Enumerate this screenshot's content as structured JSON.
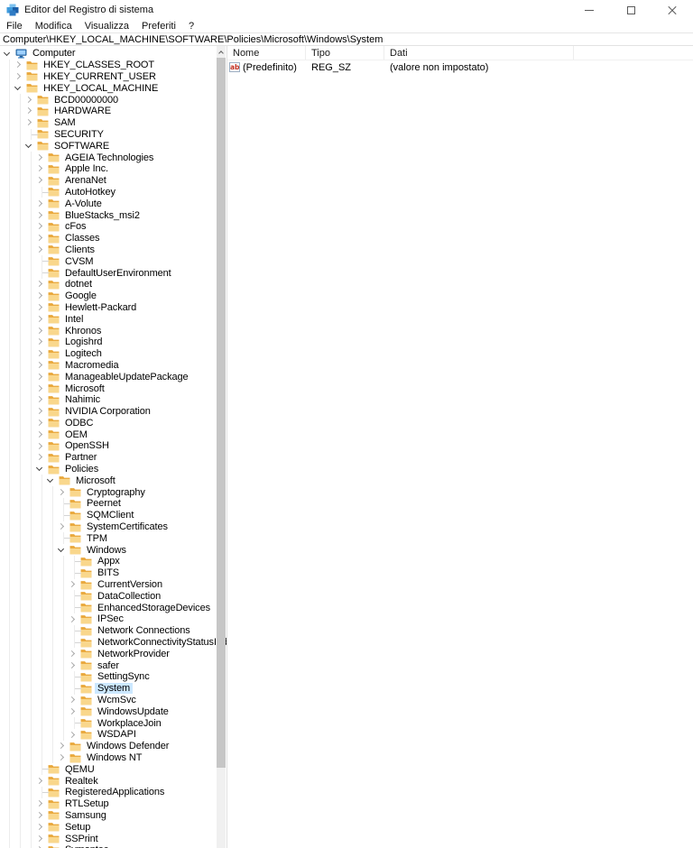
{
  "window": {
    "title": "Editor del Registro di sistema",
    "controls": [
      "minimize",
      "maximize",
      "close"
    ]
  },
  "menu": {
    "items": [
      "File",
      "Modifica",
      "Visualizza",
      "Preferiti",
      "?"
    ]
  },
  "address": {
    "value": "Computer\\HKEY_LOCAL_MACHINE\\SOFTWARE\\Policies\\Microsoft\\Windows\\System"
  },
  "colors": {
    "selection": "#cce8ff",
    "folder_front": "#f9d78c",
    "folder_back": "#e9a83b",
    "accent_blue": "#1f76d3",
    "value_icon_red": "#c22f21"
  },
  "tree": {
    "items": [
      {
        "label": "Computer",
        "level": 0,
        "chevron": "expanded",
        "icon": "computer-icon"
      },
      {
        "label": "HKEY_CLASSES_ROOT",
        "level": 1,
        "chevron": "collapsed"
      },
      {
        "label": "HKEY_CURRENT_USER",
        "level": 1,
        "chevron": "collapsed"
      },
      {
        "label": "HKEY_LOCAL_MACHINE",
        "level": 1,
        "chevron": "expanded"
      },
      {
        "label": "BCD00000000",
        "level": 2,
        "chevron": "collapsed"
      },
      {
        "label": "HARDWARE",
        "level": 2,
        "chevron": "collapsed"
      },
      {
        "label": "SAM",
        "level": 2,
        "chevron": "collapsed"
      },
      {
        "label": "SECURITY",
        "level": 2,
        "chevron": "none"
      },
      {
        "label": "SOFTWARE",
        "level": 2,
        "chevron": "expanded"
      },
      {
        "label": "AGEIA Technologies",
        "level": 3,
        "chevron": "collapsed"
      },
      {
        "label": "Apple Inc.",
        "level": 3,
        "chevron": "collapsed"
      },
      {
        "label": "ArenaNet",
        "level": 3,
        "chevron": "collapsed"
      },
      {
        "label": "AutoHotkey",
        "level": 3,
        "chevron": "none"
      },
      {
        "label": "A-Volute",
        "level": 3,
        "chevron": "collapsed"
      },
      {
        "label": "BlueStacks_msi2",
        "level": 3,
        "chevron": "collapsed"
      },
      {
        "label": "cFos",
        "level": 3,
        "chevron": "collapsed"
      },
      {
        "label": "Classes",
        "level": 3,
        "chevron": "collapsed"
      },
      {
        "label": "Clients",
        "level": 3,
        "chevron": "collapsed"
      },
      {
        "label": "CVSM",
        "level": 3,
        "chevron": "none"
      },
      {
        "label": "DefaultUserEnvironment",
        "level": 3,
        "chevron": "none"
      },
      {
        "label": "dotnet",
        "level": 3,
        "chevron": "collapsed"
      },
      {
        "label": "Google",
        "level": 3,
        "chevron": "collapsed"
      },
      {
        "label": "Hewlett-Packard",
        "level": 3,
        "chevron": "collapsed"
      },
      {
        "label": "Intel",
        "level": 3,
        "chevron": "collapsed"
      },
      {
        "label": "Khronos",
        "level": 3,
        "chevron": "collapsed"
      },
      {
        "label": "Logishrd",
        "level": 3,
        "chevron": "collapsed"
      },
      {
        "label": "Logitech",
        "level": 3,
        "chevron": "collapsed"
      },
      {
        "label": "Macromedia",
        "level": 3,
        "chevron": "collapsed"
      },
      {
        "label": "ManageableUpdatePackage",
        "level": 3,
        "chevron": "collapsed"
      },
      {
        "label": "Microsoft",
        "level": 3,
        "chevron": "collapsed"
      },
      {
        "label": "Nahimic",
        "level": 3,
        "chevron": "collapsed"
      },
      {
        "label": "NVIDIA Corporation",
        "level": 3,
        "chevron": "collapsed"
      },
      {
        "label": "ODBC",
        "level": 3,
        "chevron": "collapsed"
      },
      {
        "label": "OEM",
        "level": 3,
        "chevron": "collapsed"
      },
      {
        "label": "OpenSSH",
        "level": 3,
        "chevron": "collapsed"
      },
      {
        "label": "Partner",
        "level": 3,
        "chevron": "collapsed"
      },
      {
        "label": "Policies",
        "level": 3,
        "chevron": "expanded"
      },
      {
        "label": "Microsoft",
        "level": 4,
        "chevron": "expanded"
      },
      {
        "label": "Cryptography",
        "level": 5,
        "chevron": "collapsed"
      },
      {
        "label": "Peernet",
        "level": 5,
        "chevron": "none"
      },
      {
        "label": "SQMClient",
        "level": 5,
        "chevron": "none"
      },
      {
        "label": "SystemCertificates",
        "level": 5,
        "chevron": "collapsed"
      },
      {
        "label": "TPM",
        "level": 5,
        "chevron": "none"
      },
      {
        "label": "Windows",
        "level": 5,
        "chevron": "expanded"
      },
      {
        "label": "Appx",
        "level": 6,
        "chevron": "none"
      },
      {
        "label": "BITS",
        "level": 6,
        "chevron": "none"
      },
      {
        "label": "CurrentVersion",
        "level": 6,
        "chevron": "collapsed"
      },
      {
        "label": "DataCollection",
        "level": 6,
        "chevron": "none"
      },
      {
        "label": "EnhancedStorageDevices",
        "level": 6,
        "chevron": "none"
      },
      {
        "label": "IPSec",
        "level": 6,
        "chevron": "collapsed"
      },
      {
        "label": "Network Connections",
        "level": 6,
        "chevron": "none"
      },
      {
        "label": "NetworkConnectivityStatusIndicator",
        "level": 6,
        "chevron": "none"
      },
      {
        "label": "NetworkProvider",
        "level": 6,
        "chevron": "collapsed"
      },
      {
        "label": "safer",
        "level": 6,
        "chevron": "collapsed"
      },
      {
        "label": "SettingSync",
        "level": 6,
        "chevron": "none"
      },
      {
        "label": "System",
        "level": 6,
        "chevron": "none",
        "selected": true
      },
      {
        "label": "WcmSvc",
        "level": 6,
        "chevron": "collapsed"
      },
      {
        "label": "WindowsUpdate",
        "level": 6,
        "chevron": "collapsed"
      },
      {
        "label": "WorkplaceJoin",
        "level": 6,
        "chevron": "none"
      },
      {
        "label": "WSDAPI",
        "level": 6,
        "chevron": "collapsed"
      },
      {
        "label": "Windows Defender",
        "level": 5,
        "chevron": "collapsed"
      },
      {
        "label": "Windows NT",
        "level": 5,
        "chevron": "collapsed"
      },
      {
        "label": "QEMU",
        "level": 3,
        "chevron": "none"
      },
      {
        "label": "Realtek",
        "level": 3,
        "chevron": "collapsed"
      },
      {
        "label": "RegisteredApplications",
        "level": 3,
        "chevron": "none"
      },
      {
        "label": "RTLSetup",
        "level": 3,
        "chevron": "collapsed"
      },
      {
        "label": "Samsung",
        "level": 3,
        "chevron": "collapsed"
      },
      {
        "label": "Setup",
        "level": 3,
        "chevron": "collapsed"
      },
      {
        "label": "SSPrint",
        "level": 3,
        "chevron": "collapsed"
      },
      {
        "label": "Symantec",
        "level": 3,
        "chevron": "collapsed"
      }
    ]
  },
  "list": {
    "columns": [
      "Nome",
      "Tipo",
      "Dati"
    ],
    "rows": [
      {
        "icon": "string-value-icon",
        "icon_glyph": "ab",
        "name": "(Predefinito)",
        "type": "REG_SZ",
        "data": "(valore non impostato)"
      }
    ]
  }
}
